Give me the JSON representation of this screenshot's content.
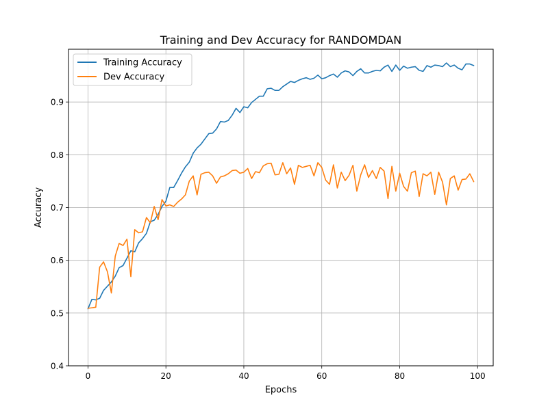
{
  "chart_data": {
    "type": "line",
    "title": "Training and Dev Accuracy for RANDOMDAN",
    "xlabel": "Epochs",
    "ylabel": "Accuracy",
    "xlim": [
      -5,
      104
    ],
    "ylim": [
      0.4,
      1.0
    ],
    "xticks": [
      0,
      20,
      40,
      60,
      80,
      100
    ],
    "xtick_labels": [
      "0",
      "20",
      "40",
      "60",
      "80",
      "100"
    ],
    "yticks": [
      0.4,
      0.5,
      0.6,
      0.7,
      0.8,
      0.9
    ],
    "ytick_labels": [
      "0.4",
      "0.5",
      "0.6",
      "0.7",
      "0.8",
      "0.9"
    ],
    "grid": true,
    "legend_position": "top-left",
    "series": [
      {
        "name": "Training Accuracy",
        "color": "#1f77b4",
        "x": [
          0,
          1,
          2,
          3,
          4,
          5,
          6,
          7,
          8,
          9,
          10,
          11,
          12,
          13,
          14,
          15,
          16,
          17,
          18,
          19,
          20,
          21,
          22,
          23,
          24,
          25,
          26,
          27,
          28,
          29,
          30,
          31,
          32,
          33,
          34,
          35,
          36,
          37,
          38,
          39,
          40,
          41,
          42,
          43,
          44,
          45,
          46,
          47,
          48,
          49,
          50,
          51,
          52,
          53,
          54,
          55,
          56,
          57,
          58,
          59,
          60,
          61,
          62,
          63,
          64,
          65,
          66,
          67,
          68,
          69,
          70,
          71,
          72,
          73,
          74,
          75,
          76,
          77,
          78,
          79,
          80,
          81,
          82,
          83,
          84,
          85,
          86,
          87,
          88,
          89,
          90,
          91,
          92,
          93,
          94,
          95,
          96,
          97,
          98,
          99
        ],
        "values": [
          0.508,
          0.526,
          0.525,
          0.528,
          0.543,
          0.551,
          0.559,
          0.57,
          0.586,
          0.59,
          0.604,
          0.618,
          0.616,
          0.633,
          0.641,
          0.651,
          0.673,
          0.676,
          0.687,
          0.702,
          0.712,
          0.738,
          0.738,
          0.751,
          0.765,
          0.777,
          0.786,
          0.803,
          0.813,
          0.82,
          0.83,
          0.84,
          0.841,
          0.849,
          0.863,
          0.862,
          0.865,
          0.875,
          0.888,
          0.88,
          0.891,
          0.889,
          0.899,
          0.905,
          0.911,
          0.911,
          0.925,
          0.926,
          0.922,
          0.922,
          0.929,
          0.934,
          0.939,
          0.937,
          0.941,
          0.944,
          0.946,
          0.943,
          0.945,
          0.951,
          0.944,
          0.946,
          0.95,
          0.953,
          0.947,
          0.955,
          0.959,
          0.957,
          0.95,
          0.958,
          0.963,
          0.955,
          0.955,
          0.958,
          0.96,
          0.959,
          0.966,
          0.97,
          0.958,
          0.97,
          0.96,
          0.968,
          0.964,
          0.966,
          0.967,
          0.96,
          0.958,
          0.969,
          0.966,
          0.97,
          0.969,
          0.967,
          0.974,
          0.967,
          0.97,
          0.964,
          0.961,
          0.972,
          0.972,
          0.969
        ]
      },
      {
        "name": "Dev Accuracy",
        "color": "#ff7f0e",
        "x": [
          0,
          1,
          2,
          3,
          4,
          5,
          6,
          7,
          8,
          9,
          10,
          11,
          12,
          13,
          14,
          15,
          16,
          17,
          18,
          19,
          20,
          21,
          22,
          23,
          24,
          25,
          26,
          27,
          28,
          29,
          30,
          31,
          32,
          33,
          34,
          35,
          36,
          37,
          38,
          39,
          40,
          41,
          42,
          43,
          44,
          45,
          46,
          47,
          48,
          49,
          50,
          51,
          52,
          53,
          54,
          55,
          56,
          57,
          58,
          59,
          60,
          61,
          62,
          63,
          64,
          65,
          66,
          67,
          68,
          69,
          70,
          71,
          72,
          73,
          74,
          75,
          76,
          77,
          78,
          79,
          80,
          81,
          82,
          83,
          84,
          85,
          86,
          87,
          88,
          89,
          90,
          91,
          92,
          93,
          94,
          95,
          96,
          97,
          98,
          99
        ],
        "values": [
          0.509,
          0.51,
          0.511,
          0.587,
          0.597,
          0.578,
          0.538,
          0.608,
          0.632,
          0.628,
          0.64,
          0.569,
          0.658,
          0.652,
          0.654,
          0.681,
          0.671,
          0.702,
          0.677,
          0.715,
          0.703,
          0.705,
          0.702,
          0.71,
          0.716,
          0.724,
          0.75,
          0.76,
          0.724,
          0.763,
          0.766,
          0.767,
          0.76,
          0.746,
          0.758,
          0.76,
          0.764,
          0.77,
          0.771,
          0.765,
          0.767,
          0.774,
          0.755,
          0.768,
          0.766,
          0.779,
          0.783,
          0.784,
          0.762,
          0.763,
          0.785,
          0.764,
          0.775,
          0.744,
          0.78,
          0.776,
          0.778,
          0.78,
          0.76,
          0.785,
          0.776,
          0.752,
          0.744,
          0.781,
          0.737,
          0.767,
          0.751,
          0.761,
          0.78,
          0.731,
          0.762,
          0.781,
          0.757,
          0.77,
          0.755,
          0.776,
          0.769,
          0.717,
          0.778,
          0.731,
          0.765,
          0.74,
          0.731,
          0.766,
          0.769,
          0.721,
          0.764,
          0.76,
          0.767,
          0.725,
          0.767,
          0.748,
          0.705,
          0.755,
          0.76,
          0.733,
          0.753,
          0.754,
          0.764,
          0.749
        ]
      }
    ]
  }
}
